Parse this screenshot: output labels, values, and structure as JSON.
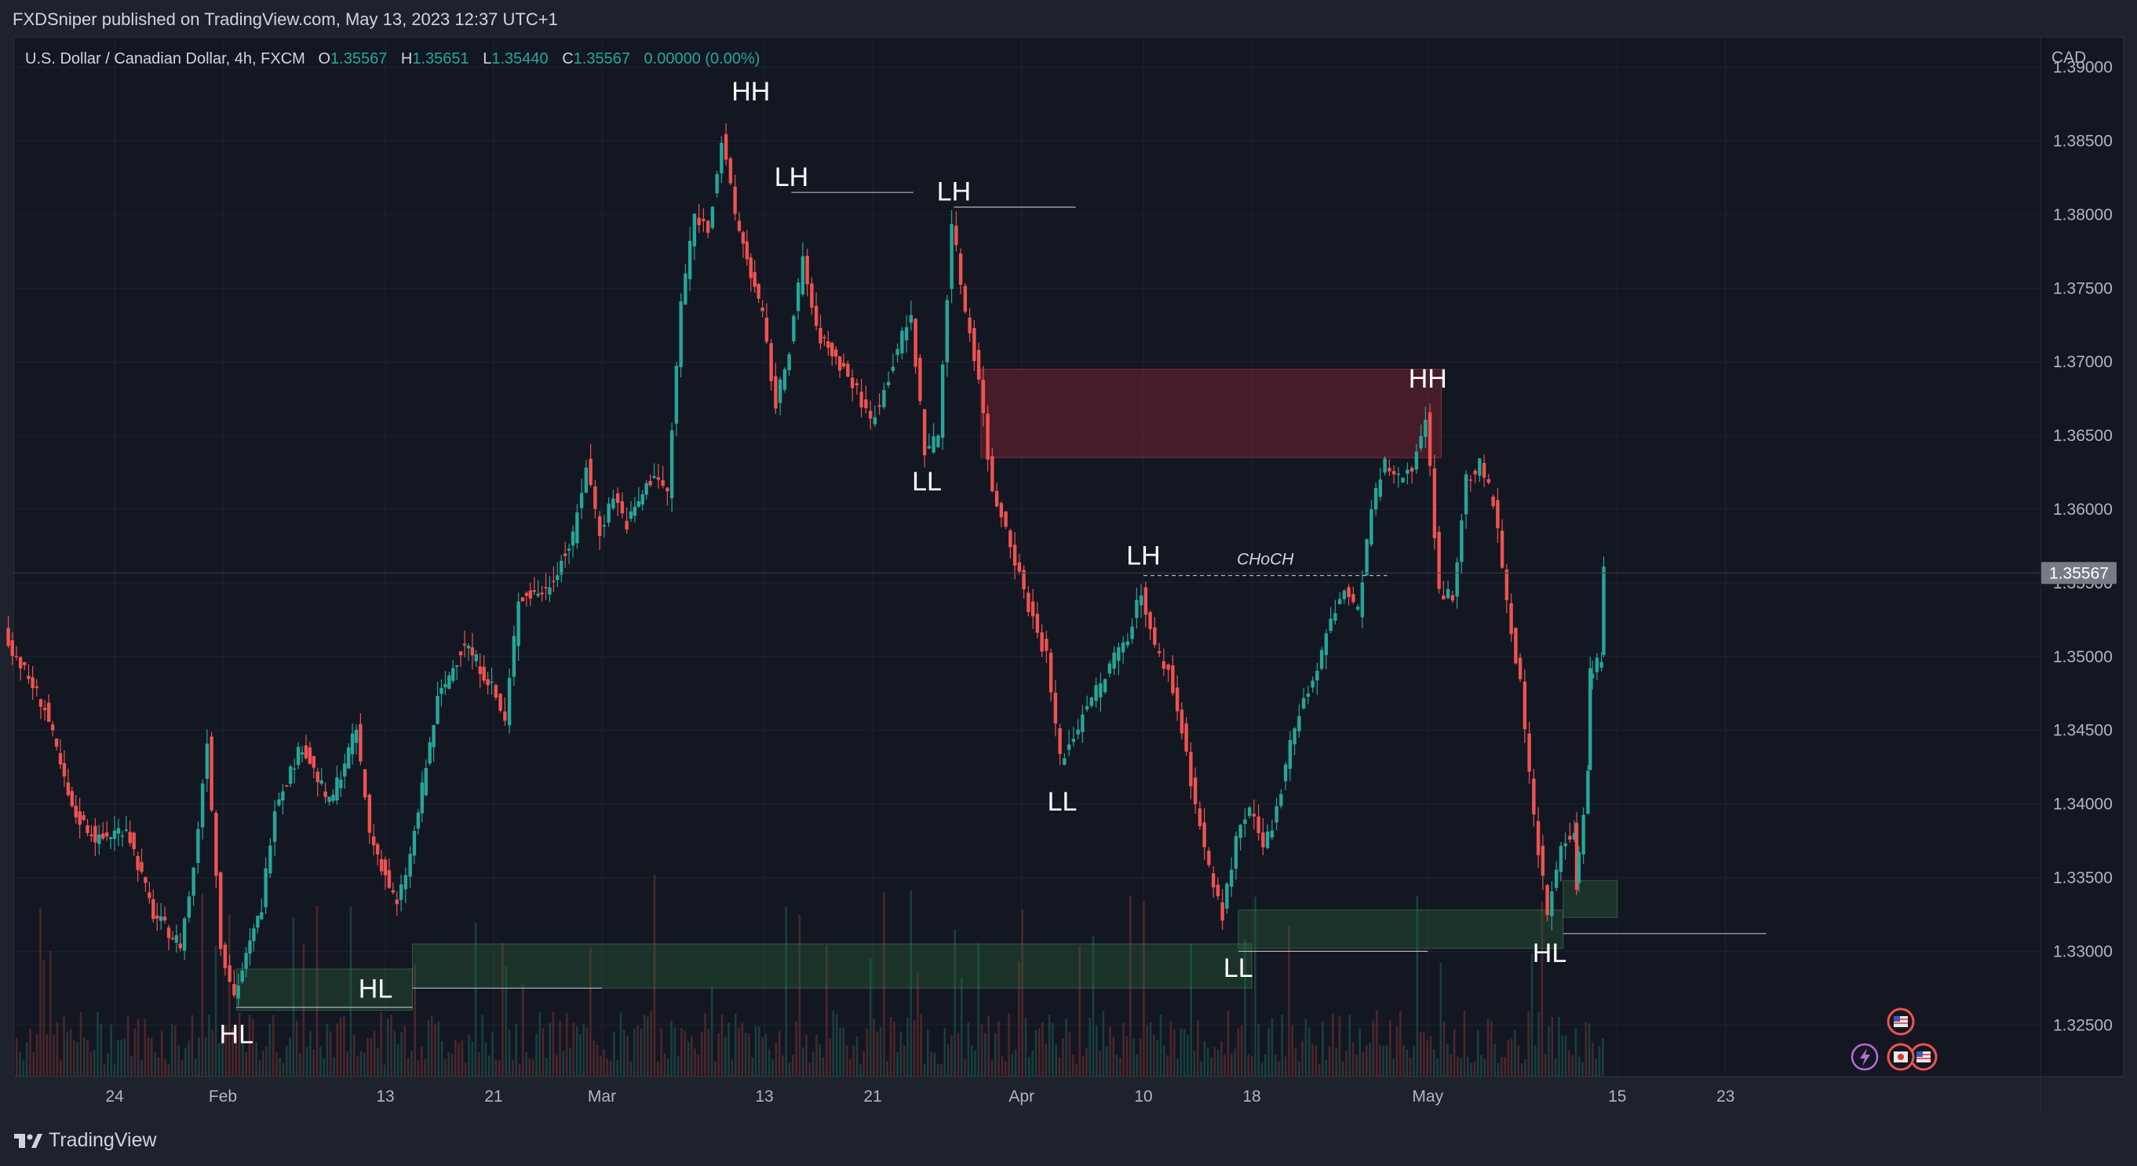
{
  "header": {
    "published": "FXDSniper published on TradingView.com, May 13, 2023 12:37 UTC+1"
  },
  "legend": {
    "symbol": "U.S. Dollar / Canadian Dollar, 4h, FXCM",
    "o_label": "O",
    "o": "1.35567",
    "h_label": "H",
    "h": "1.35651",
    "l_label": "L",
    "l": "1.35440",
    "c_label": "C",
    "c": "1.35567",
    "change": "0.00000 (0.00%)"
  },
  "footer": {
    "brand": "TradingView"
  },
  "colors": {
    "up": "#26a69a",
    "down": "#ef5350",
    "background": "#131722",
    "supply_zone": "#5a1f2a",
    "demand_zone": "#1f3d2a"
  },
  "chart_data": {
    "type": "candlestick",
    "currency": "CAD",
    "last_price": "1.35567",
    "y_ticks": [
      "1.39000",
      "1.38500",
      "1.38000",
      "1.37500",
      "1.37000",
      "1.36500",
      "1.36000",
      "1.35500",
      "1.35000",
      "1.34500",
      "1.34000",
      "1.33500",
      "1.33000",
      "1.32500"
    ],
    "ylim": [
      1.3215,
      1.392
    ],
    "x_ticks": [
      "24",
      "Feb",
      "13",
      "21",
      "Mar",
      "13",
      "21",
      "Apr",
      "10",
      "18",
      "May",
      "15",
      "23"
    ],
    "x_tick_dates": [
      "2023-01-24",
      "2023-02-01",
      "2023-02-13",
      "2023-02-21",
      "2023-03-01",
      "2023-03-13",
      "2023-03-21",
      "2023-04-01",
      "2023-04-10",
      "2023-04-18",
      "2023-05-01",
      "2023-05-15",
      "2023-05-23"
    ],
    "price_path": [
      {
        "date": "2023-01-16",
        "price": 1.3515
      },
      {
        "date": "2023-01-19",
        "price": 1.3465
      },
      {
        "date": "2023-01-21",
        "price": 1.3395
      },
      {
        "date": "2023-01-23",
        "price": 1.3375
      },
      {
        "date": "2023-01-25",
        "price": 1.3385
      },
      {
        "date": "2023-01-27",
        "price": 1.3325
      },
      {
        "date": "2023-01-29",
        "price": 1.3305
      },
      {
        "date": "2023-01-30",
        "price": 1.3355
      },
      {
        "date": "2023-01-31",
        "price": 1.3445
      },
      {
        "date": "2023-02-01",
        "price": 1.3305
      },
      {
        "date": "2023-02-02",
        "price": 1.327
      },
      {
        "date": "2023-02-04",
        "price": 1.333
      },
      {
        "date": "2023-02-05",
        "price": 1.34
      },
      {
        "date": "2023-02-07",
        "price": 1.344
      },
      {
        "date": "2023-02-09",
        "price": 1.34
      },
      {
        "date": "2023-02-11",
        "price": 1.345
      },
      {
        "date": "2023-02-12",
        "price": 1.338
      },
      {
        "date": "2023-02-14",
        "price": 1.333
      },
      {
        "date": "2023-02-15",
        "price": 1.3365
      },
      {
        "date": "2023-02-17",
        "price": 1.347
      },
      {
        "date": "2023-02-19",
        "price": 1.351
      },
      {
        "date": "2023-02-21",
        "price": 1.348
      },
      {
        "date": "2023-02-22",
        "price": 1.3455
      },
      {
        "date": "2023-02-23",
        "price": 1.354
      },
      {
        "date": "2023-02-25",
        "price": 1.3545
      },
      {
        "date": "2023-02-27",
        "price": 1.358
      },
      {
        "date": "2023-02-28",
        "price": 1.363
      },
      {
        "date": "2023-03-01",
        "price": 1.3585
      },
      {
        "date": "2023-03-02",
        "price": 1.361
      },
      {
        "date": "2023-03-03",
        "price": 1.359
      },
      {
        "date": "2023-03-05",
        "price": 1.3625
      },
      {
        "date": "2023-03-06",
        "price": 1.361
      },
      {
        "date": "2023-03-07",
        "price": 1.374
      },
      {
        "date": "2023-03-08",
        "price": 1.38
      },
      {
        "date": "2023-03-09",
        "price": 1.379
      },
      {
        "date": "2023-03-10",
        "price": 1.385
      },
      {
        "date": "2023-03-11",
        "price": 1.38
      },
      {
        "date": "2023-03-13",
        "price": 1.373
      },
      {
        "date": "2023-03-14",
        "price": 1.367
      },
      {
        "date": "2023-03-15",
        "price": 1.371
      },
      {
        "date": "2023-03-16",
        "price": 1.377
      },
      {
        "date": "2023-03-17",
        "price": 1.372
      },
      {
        "date": "2023-03-19",
        "price": 1.3695
      },
      {
        "date": "2023-03-20",
        "price": 1.368
      },
      {
        "date": "2023-03-21",
        "price": 1.366
      },
      {
        "date": "2023-03-22",
        "price": 1.368
      },
      {
        "date": "2023-03-23",
        "price": 1.371
      },
      {
        "date": "2023-03-24",
        "price": 1.373
      },
      {
        "date": "2023-03-25",
        "price": 1.364
      },
      {
        "date": "2023-03-26",
        "price": 1.365
      },
      {
        "date": "2023-03-27",
        "price": 1.3795
      },
      {
        "date": "2023-03-28",
        "price": 1.3735
      },
      {
        "date": "2023-03-29",
        "price": 1.369
      },
      {
        "date": "2023-03-30",
        "price": 1.361
      },
      {
        "date": "2023-03-31",
        "price": 1.359
      },
      {
        "date": "2023-04-01",
        "price": 1.3555
      },
      {
        "date": "2023-04-02",
        "price": 1.3525
      },
      {
        "date": "2023-04-03",
        "price": 1.35
      },
      {
        "date": "2023-04-04",
        "price": 1.343
      },
      {
        "date": "2023-04-05",
        "price": 1.3445
      },
      {
        "date": "2023-04-06",
        "price": 1.347
      },
      {
        "date": "2023-04-07",
        "price": 1.348
      },
      {
        "date": "2023-04-08",
        "price": 1.35
      },
      {
        "date": "2023-04-09",
        "price": 1.3515
      },
      {
        "date": "2023-04-10",
        "price": 1.3545
      },
      {
        "date": "2023-04-11",
        "price": 1.3505
      },
      {
        "date": "2023-04-12",
        "price": 1.349
      },
      {
        "date": "2023-04-13",
        "price": 1.345
      },
      {
        "date": "2023-04-14",
        "price": 1.34
      },
      {
        "date": "2023-04-15",
        "price": 1.3355
      },
      {
        "date": "2023-04-16",
        "price": 1.3325
      },
      {
        "date": "2023-04-17",
        "price": 1.3375
      },
      {
        "date": "2023-04-18",
        "price": 1.3395
      },
      {
        "date": "2023-04-19",
        "price": 1.337
      },
      {
        "date": "2023-04-20",
        "price": 1.3395
      },
      {
        "date": "2023-04-21",
        "price": 1.3445
      },
      {
        "date": "2023-04-22",
        "price": 1.347
      },
      {
        "date": "2023-04-23",
        "price": 1.349
      },
      {
        "date": "2023-04-24",
        "price": 1.3525
      },
      {
        "date": "2023-04-25",
        "price": 1.3545
      },
      {
        "date": "2023-04-26",
        "price": 1.353
      },
      {
        "date": "2023-04-27",
        "price": 1.36
      },
      {
        "date": "2023-04-28",
        "price": 1.363
      },
      {
        "date": "2023-04-29",
        "price": 1.362
      },
      {
        "date": "2023-04-30",
        "price": 1.363
      },
      {
        "date": "2023-05-01",
        "price": 1.3665
      },
      {
        "date": "2023-05-02",
        "price": 1.3545
      },
      {
        "date": "2023-05-03",
        "price": 1.354
      },
      {
        "date": "2023-05-04",
        "price": 1.362
      },
      {
        "date": "2023-05-05",
        "price": 1.363
      },
      {
        "date": "2023-05-06",
        "price": 1.3605
      },
      {
        "date": "2023-05-07",
        "price": 1.354
      },
      {
        "date": "2023-05-08",
        "price": 1.348
      },
      {
        "date": "2023-05-09",
        "price": 1.339
      },
      {
        "date": "2023-05-10",
        "price": 1.3325
      },
      {
        "date": "2023-05-11",
        "price": 1.337
      },
      {
        "date": "2023-05-12",
        "price": 1.3385
      },
      {
        "date": "2023-05-12",
        "price": 1.3345
      },
      {
        "date": "2023-05-13",
        "price": 1.342
      },
      {
        "date": "2023-05-13",
        "price": 1.349
      },
      {
        "date": "2023-05-14",
        "price": 1.35
      },
      {
        "date": "2023-05-14",
        "price": 1.35567
      }
    ],
    "annotations": [
      {
        "text": "HH",
        "date": "2023-03-12",
        "price": 1.387,
        "pos": "above"
      },
      {
        "text": "LH",
        "date": "2023-03-15",
        "price": 1.3812,
        "pos": "above"
      },
      {
        "text": "LH",
        "date": "2023-03-27",
        "price": 1.3802,
        "pos": "above"
      },
      {
        "text": "LL",
        "date": "2023-03-25",
        "price": 1.3635,
        "pos": "below"
      },
      {
        "text": "LH",
        "date": "2023-04-10",
        "price": 1.3555,
        "pos": "above"
      },
      {
        "text": "CHoCH",
        "date": "2023-04-19",
        "price": 1.3555,
        "pos": "above",
        "style": "small"
      },
      {
        "text": "LL",
        "date": "2023-04-04",
        "price": 1.3418,
        "pos": "below"
      },
      {
        "text": "LL",
        "date": "2023-04-17",
        "price": 1.3305,
        "pos": "below"
      },
      {
        "text": "HH",
        "date": "2023-05-01",
        "price": 1.3675,
        "pos": "above"
      },
      {
        "text": "HL",
        "date": "2023-05-10",
        "price": 1.3315,
        "pos": "below"
      },
      {
        "text": "HL",
        "date": "2023-02-02",
        "price": 1.326,
        "pos": "below"
      },
      {
        "text": "HL",
        "date": "2023-02-14",
        "price": 1.3275,
        "pos": "left"
      }
    ],
    "zones": [
      {
        "kind": "supply",
        "from": "2023-03-29",
        "to": "2023-05-02",
        "top": 1.3695,
        "bottom": 1.3635
      },
      {
        "kind": "demand",
        "from": "2023-02-02",
        "to": "2023-02-15",
        "top": 1.3288,
        "bottom": 1.326
      },
      {
        "kind": "demand",
        "from": "2023-02-15",
        "to": "2023-04-18",
        "top": 1.3305,
        "bottom": 1.3275
      },
      {
        "kind": "demand",
        "from": "2023-04-17",
        "to": "2023-05-11",
        "top": 1.3328,
        "bottom": 1.3302
      },
      {
        "kind": "demand",
        "from": "2023-05-11",
        "to": "2023-05-15",
        "top": 1.3348,
        "bottom": 1.3323
      }
    ],
    "levels": [
      {
        "from": "2023-03-15",
        "to": "2023-03-24",
        "price": 1.3815
      },
      {
        "from": "2023-03-27",
        "to": "2023-04-05",
        "price": 1.3805
      },
      {
        "from": "2023-04-10",
        "to": "2023-04-28",
        "price": 1.3555,
        "dashed": true
      },
      {
        "from": "2023-02-02",
        "to": "2023-02-15",
        "price": 1.3262
      },
      {
        "from": "2023-02-15",
        "to": "2023-02-29",
        "price": 1.3275
      },
      {
        "from": "2023-04-17",
        "to": "2023-05-01",
        "price": 1.33
      },
      {
        "from": "2023-05-11",
        "to": "2023-05-26",
        "price": 1.3312
      }
    ]
  }
}
